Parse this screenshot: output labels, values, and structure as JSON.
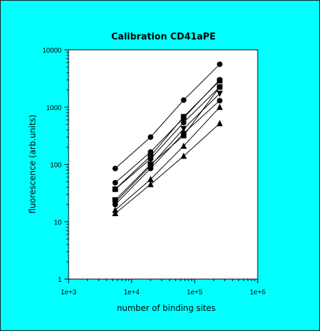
{
  "chart_data": {
    "type": "scatter",
    "title": "Calibration CD41aPE",
    "xlabel": "number of binding sites",
    "ylabel": "fluorescence (arb.units)",
    "xscale": "log",
    "yscale": "log",
    "xlim": [
      1000,
      1000000
    ],
    "ylim": [
      1,
      10000
    ],
    "x_tick_labels": [
      "1e+3",
      "1e+4",
      "1e+5",
      "1e+6"
    ],
    "y_tick_labels": [
      "1",
      "10",
      "100",
      "1000",
      "10000"
    ],
    "grid": false,
    "x": [
      5500,
      20000,
      67000,
      250000
    ],
    "series": [
      {
        "marker": "circle",
        "values": [
          85,
          300,
          1330,
          5600
        ]
      },
      {
        "marker": "circle",
        "values": [
          48,
          165,
          650,
          3000
        ]
      },
      {
        "marker": "square",
        "values": [
          37,
          140,
          680,
          2900
        ]
      },
      {
        "marker": "circle",
        "values": [
          37,
          125,
          540,
          2250
        ]
      },
      {
        "marker": "triangle-down",
        "values": [
          22,
          95,
          420,
          1730
        ]
      },
      {
        "marker": "square",
        "values": [
          24,
          100,
          320,
          2250
        ]
      },
      {
        "marker": "circle",
        "values": [
          20,
          85,
          350,
          1300
        ]
      },
      {
        "marker": "triangle",
        "values": [
          16,
          55,
          210,
          1000
        ]
      },
      {
        "marker": "triangle",
        "values": [
          14,
          45,
          140,
          520
        ]
      }
    ]
  }
}
